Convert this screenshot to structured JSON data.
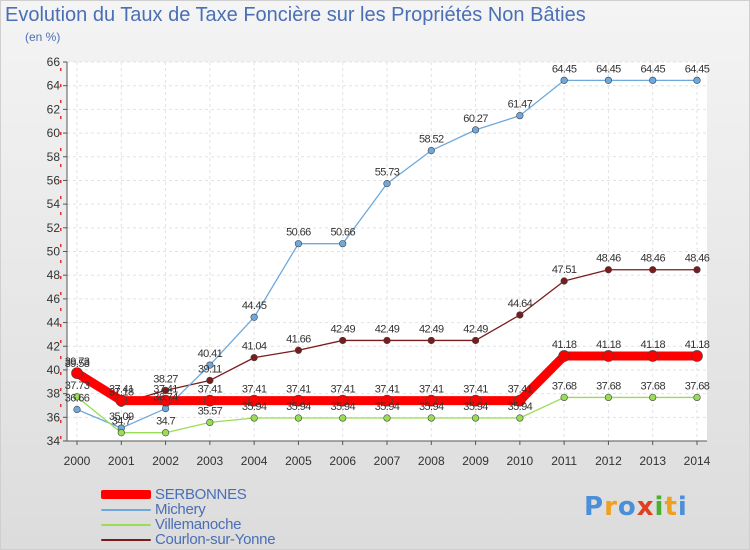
{
  "title": "Evolution du Taux de Taxe Foncière sur les Propriétés Non Bâties",
  "subtitle": "(en %)",
  "logo": {
    "text": "Proxiti",
    "letters": [
      {
        "char": "P",
        "color": "#4a8fd8"
      },
      {
        "char": "r",
        "color": "#f0a020"
      },
      {
        "char": "o",
        "color": "#4a8fd8"
      },
      {
        "char": "x",
        "color": "#e04020"
      },
      {
        "char": "i",
        "color": "#4ab030"
      },
      {
        "char": "t",
        "color": "#f0a020"
      },
      {
        "char": "i",
        "color": "#4a8fd8"
      }
    ]
  },
  "chart_data": {
    "type": "line",
    "title": "Evolution du Taux de Taxe Foncière sur les Propriétés Non Bâties",
    "ylabel": "(en %)",
    "categories": [
      "2000",
      "2001",
      "2002",
      "2003",
      "2004",
      "2005",
      "2006",
      "2007",
      "2008",
      "2009",
      "2010",
      "2011",
      "2012",
      "2013",
      "2014"
    ],
    "ylim": [
      34,
      66
    ],
    "yticks": [
      34,
      36,
      38,
      40,
      42,
      44,
      46,
      48,
      50,
      52,
      54,
      56,
      58,
      60,
      62,
      64,
      66
    ],
    "grid": true,
    "legend_position": "bottom-left",
    "series": [
      {
        "name": "SERBONNES",
        "color": "#ff0000",
        "values": [
          39.73,
          37.41,
          37.41,
          37.41,
          37.41,
          37.41,
          37.41,
          37.41,
          37.41,
          37.41,
          37.41,
          41.18,
          41.18,
          41.18,
          41.18
        ],
        "labels": [
          "39.73",
          "37.41",
          "37.41",
          "37.41",
          "37.41",
          "37.41",
          "37.41",
          "37.41",
          "37.41",
          "37.41",
          "37.41",
          "41.18",
          "41.18",
          "41.18",
          "41.18"
        ]
      },
      {
        "name": "Michery",
        "color": "#6fa8dc",
        "values": [
          36.66,
          35.09,
          36.74,
          40.41,
          44.45,
          50.66,
          50.66,
          55.73,
          58.52,
          60.27,
          61.47,
          64.45,
          64.45,
          64.45,
          64.45
        ],
        "labels": [
          "36.66",
          "35.09",
          "36.74",
          "40.41",
          "44.45",
          "50.66",
          "50.66",
          "55.73",
          "58.52",
          "60.27",
          "61.47",
          "64.45",
          "64.45",
          "64.45",
          "64.45"
        ]
      },
      {
        "name": "Villemanoche",
        "color": "#99dd55",
        "values": [
          37.73,
          34.7,
          34.7,
          35.57,
          35.94,
          35.94,
          35.94,
          35.94,
          35.94,
          35.94,
          35.94,
          37.68,
          37.68,
          37.68,
          37.68
        ],
        "labels": [
          "37.73",
          "34.7",
          "34.7",
          "35.57",
          "35.94",
          "35.94",
          "35.94",
          "35.94",
          "35.94",
          "35.94",
          "35.94",
          "37.68",
          "37.68",
          "37.68",
          "37.68"
        ]
      },
      {
        "name": "Courlon-sur-Yonne",
        "color": "#7a1c1c",
        "values": [
          39.58,
          37.18,
          38.27,
          39.11,
          41.04,
          41.66,
          42.49,
          42.49,
          42.49,
          42.49,
          44.64,
          47.51,
          48.46,
          48.46,
          48.46
        ],
        "labels": [
          "39.58",
          "37.18",
          "38.27",
          "39.11",
          "41.04",
          "41.66",
          "42.49",
          "42.49",
          "42.49",
          "42.49",
          "44.64",
          "47.51",
          "48.46",
          "48.46",
          "48.46"
        ]
      }
    ]
  }
}
